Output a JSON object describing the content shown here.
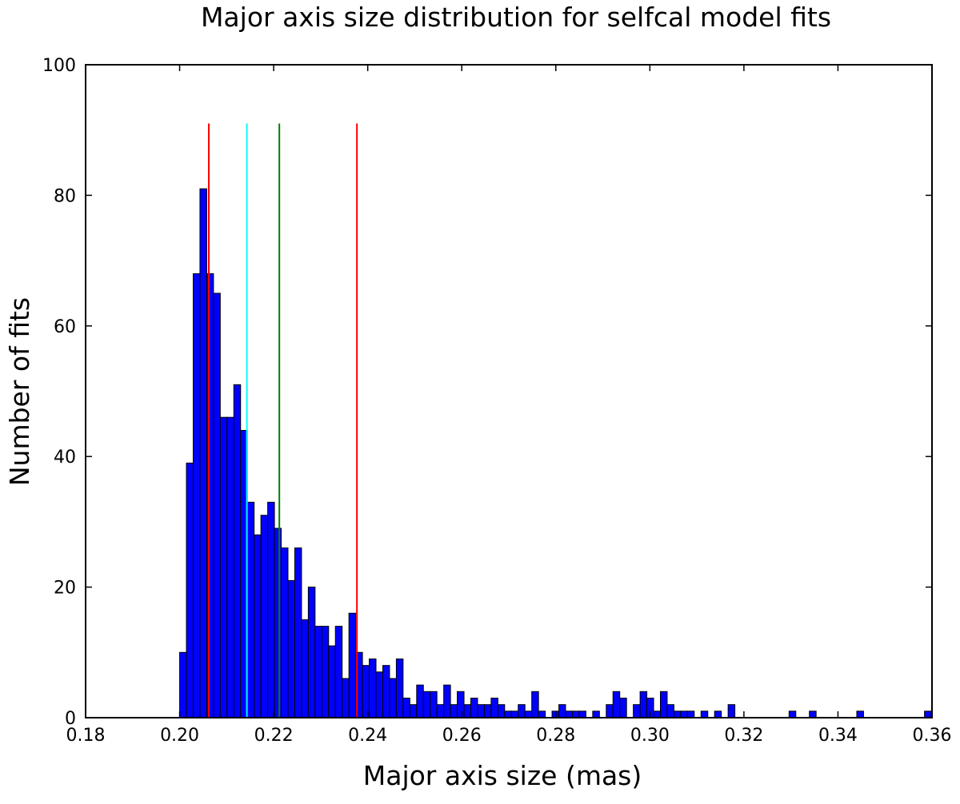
{
  "chart_data": {
    "type": "bar",
    "title": "Major axis size distribution for selfcal model fits",
    "xlabel": "Major axis size (mas)",
    "ylabel": "Number of fits",
    "xlim": [
      0.18,
      0.36
    ],
    "ylim": [
      0,
      100
    ],
    "x_ticks": [
      "0.18",
      "0.20",
      "0.22",
      "0.24",
      "0.26",
      "0.28",
      "0.30",
      "0.32",
      "0.34",
      "0.36"
    ],
    "y_ticks": [
      "0",
      "20",
      "40",
      "60",
      "80",
      "100"
    ],
    "grid": false,
    "bar_color": "#0000ff",
    "bin_start": 0.2,
    "bin_width": 0.00144,
    "values": [
      10,
      39,
      68,
      81,
      68,
      65,
      46,
      46,
      51,
      44,
      33,
      28,
      31,
      33,
      29,
      26,
      21,
      26,
      15,
      20,
      14,
      14,
      11,
      14,
      6,
      16,
      10,
      8,
      9,
      7,
      8,
      6,
      9,
      3,
      2,
      5,
      4,
      4,
      2,
      5,
      2,
      4,
      2,
      3,
      2,
      2,
      3,
      2,
      1,
      1,
      2,
      1,
      4,
      1,
      0,
      1,
      2,
      1,
      1,
      1,
      0,
      1,
      0,
      2,
      4,
      3,
      0,
      2,
      4,
      3,
      1,
      4,
      2,
      1,
      1,
      1,
      0,
      1,
      0,
      1,
      0,
      2,
      0,
      0,
      0,
      0,
      0,
      0,
      0,
      0,
      1,
      0,
      0,
      1,
      0,
      0,
      0,
      0,
      0,
      0,
      1,
      0,
      0,
      0,
      0,
      0,
      0,
      0,
      0,
      0,
      1
    ],
    "vertical_lines": [
      {
        "x": 0.2062,
        "color": "#ff0000",
        "top": 91
      },
      {
        "x": 0.2143,
        "color": "#00ffff",
        "top": 91
      },
      {
        "x": 0.2212,
        "color": "#008000",
        "top": 91
      },
      {
        "x": 0.2377,
        "color": "#ff0000",
        "top": 91
      }
    ]
  }
}
